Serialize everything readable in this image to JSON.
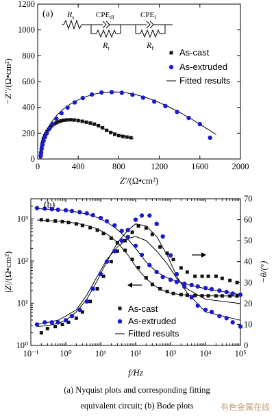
{
  "caption": {
    "line1": "(a) Nyquist plots and corresponding fitting",
    "line2": "equivalent circuit; (b) Bode plots"
  },
  "watermark": "有色金属在线",
  "colors": {
    "as_cast": "#111111",
    "as_extruded": "#1a1ad2",
    "fit": "#000000"
  },
  "chart_data": [
    {
      "type": "scatter",
      "panel_label": "(a)",
      "xlabel_main": "Z′",
      "xlabel_unit": "/(Ω•cm²)",
      "ylabel_main": "−Z″",
      "ylabel_unit": "/(Ω•cm²)",
      "xlim": [
        0,
        2000
      ],
      "ylim": [
        0,
        1200
      ],
      "xticks": [
        "0",
        "400",
        "800",
        "1200",
        "1600",
        "2000"
      ],
      "yticks": [
        "0",
        "200",
        "400",
        "600",
        "800",
        "1000",
        "1200"
      ],
      "circuit_labels": {
        "rs": "R",
        "rs_sub": "s",
        "cpe_dl": "CPE",
        "cpe_dl_sub": "dl",
        "cpe_f": "CPE",
        "cpe_f_sub": "f",
        "rt": "R",
        "rt_sub": "t",
        "rf": "R",
        "rf_sub": "f"
      },
      "legend": [
        "As-cast",
        "As-extruded",
        "Fitted results"
      ],
      "series": [
        {
          "name": "As-cast",
          "marker": "square",
          "x": [
            30,
            33,
            36,
            40,
            45,
            50,
            56,
            62,
            70,
            80,
            92,
            106,
            122,
            140,
            160,
            182,
            205,
            230,
            258,
            290,
            325,
            360,
            400,
            440,
            480,
            520,
            560,
            600,
            640,
            680,
            720,
            760,
            800,
            840,
            880,
            920
          ],
          "y": [
            20,
            45,
            70,
            95,
            118,
            135,
            152,
            165,
            180,
            195,
            212,
            228,
            244,
            258,
            270,
            280,
            288,
            295,
            300,
            303,
            304,
            302,
            298,
            292,
            285,
            278,
            270,
            258,
            242,
            222,
            205,
            192,
            182,
            175,
            170,
            165
          ]
        },
        {
          "name": "As-extruded",
          "marker": "circle",
          "x": [
            30,
            34,
            40,
            48,
            58,
            72,
            90,
            115,
            145,
            185,
            235,
            295,
            365,
            445,
            535,
            630,
            730,
            830,
            935,
            1040,
            1150,
            1260,
            1375,
            1490,
            1600,
            1700
          ],
          "y": [
            25,
            50,
            80,
            110,
            140,
            170,
            200,
            235,
            272,
            312,
            355,
            398,
            438,
            472,
            500,
            515,
            518,
            513,
            498,
            475,
            445,
            410,
            365,
            318,
            270,
            165
          ]
        },
        {
          "name": "Fitted results",
          "style": "line",
          "fit_for": "As-cast",
          "x": [
            26,
            30,
            36,
            45,
            60,
            80,
            110,
            150,
            200,
            260,
            320,
            380,
            430,
            480,
            540,
            600,
            650,
            700,
            750,
            800,
            850,
            900,
            950
          ],
          "y": [
            0,
            40,
            85,
            130,
            175,
            212,
            248,
            275,
            293,
            303,
            306,
            303,
            296,
            285,
            270,
            253,
            236,
            218,
            202,
            188,
            177,
            168,
            160
          ]
        },
        {
          "name": "Fitted results",
          "style": "line",
          "fit_for": "As-extruded",
          "x": [
            26,
            30,
            38,
            50,
            70,
            100,
            140,
            190,
            250,
            320,
            400,
            480,
            560,
            640,
            720,
            800,
            880,
            960,
            1040,
            1120,
            1200,
            1280,
            1360,
            1440,
            1520,
            1600,
            1680,
            1760
          ],
          "y": [
            0,
            45,
            90,
            140,
            190,
            240,
            290,
            340,
            385,
            425,
            458,
            484,
            503,
            515,
            520,
            519,
            512,
            500,
            483,
            462,
            437,
            409,
            378,
            344,
            308,
            270,
            230,
            190
          ]
        }
      ]
    },
    {
      "type": "scatter",
      "panel_label": "(b)",
      "xlabel": "f/Hz",
      "ylabel_left_main": "|Z|",
      "ylabel_left_unit": "/(Ω•cm²)",
      "ylabel_right": "−θ/(°)",
      "x_scale": "log",
      "y_left_scale": "log",
      "xlim": [
        0.1,
        100000
      ],
      "ylim_left": [
        1,
        3000
      ],
      "ylim_right": [
        0,
        70
      ],
      "xticks": [
        "10⁻¹",
        "10⁰",
        "10¹",
        "10²",
        "10³",
        "10⁴",
        "10⁵"
      ],
      "yticks_left": [
        "10⁰",
        "10¹",
        "10²",
        "10³"
      ],
      "yticks_right": [
        "0",
        "10",
        "20",
        "30",
        "40",
        "50",
        "60",
        "70"
      ],
      "legend": [
        "As-cast",
        "As-extruded",
        "Fitted results"
      ],
      "series": [
        {
          "name": "As-cast",
          "quantity": "|Z|",
          "axis": "left",
          "marker": "square",
          "x": [
            0.2,
            0.3,
            0.5,
            0.8,
            1.2,
            2,
            3,
            5,
            8,
            12,
            20,
            30,
            50,
            80,
            120,
            200,
            300,
            500,
            800,
            1200,
            2000,
            3000,
            5000,
            8000,
            12000,
            20000,
            30000,
            50000,
            80000
          ],
          "y": [
            950,
            920,
            890,
            860,
            820,
            760,
            700,
            620,
            540,
            450,
            350,
            270,
            180,
            110,
            70,
            40,
            28,
            22,
            19,
            17,
            16,
            15.5,
            15.2,
            15,
            15,
            14.9,
            14.9,
            14.8,
            14.8
          ]
        },
        {
          "name": "As-extruded",
          "quantity": "|Z|",
          "axis": "left",
          "marker": "circle",
          "x": [
            0.15,
            0.25,
            0.4,
            0.6,
            1,
            1.5,
            2.5,
            4,
            6,
            10,
            15,
            25,
            40,
            60,
            100,
            150,
            250,
            400,
            600,
            1000,
            1500,
            2500,
            4000,
            6000,
            10000,
            15000,
            25000,
            40000,
            60000,
            100000
          ],
          "y": [
            1800,
            1750,
            1700,
            1650,
            1600,
            1530,
            1450,
            1350,
            1220,
            1050,
            880,
            700,
            520,
            370,
            230,
            140,
            80,
            55,
            42,
            36,
            32,
            29,
            27,
            25,
            23,
            21.5,
            20,
            18.5,
            17,
            16
          ]
        },
        {
          "name": "As-cast",
          "quantity": "−θ",
          "axis": "right",
          "marker": "square",
          "x": [
            0.2,
            0.3,
            0.5,
            0.8,
            1.2,
            2,
            3,
            5,
            8,
            12,
            20,
            30,
            50,
            80,
            120,
            200,
            300,
            500,
            800,
            1200,
            2000,
            3000,
            5000,
            8000,
            12000,
            20000,
            30000,
            50000,
            80000
          ],
          "y": [
            6,
            8,
            9,
            10,
            11,
            13,
            16,
            21,
            27,
            33,
            40,
            45,
            50,
            54,
            57,
            56,
            53,
            47,
            44,
            41,
            37,
            35,
            33,
            33,
            33,
            33,
            32,
            31,
            30
          ]
        },
        {
          "name": "As-extruded",
          "quantity": "−θ",
          "axis": "right",
          "marker": "circle",
          "x": [
            0.15,
            0.25,
            0.4,
            0.6,
            1,
            1.5,
            2.5,
            4,
            6,
            10,
            15,
            25,
            40,
            60,
            100,
            150,
            250,
            400,
            600,
            1000,
            1500,
            2500,
            4000,
            6000,
            10000,
            15000,
            25000,
            40000,
            60000,
            100000
          ],
          "y": [
            10,
            11,
            11,
            11,
            12,
            14,
            17,
            21,
            27,
            34,
            40,
            45,
            50,
            55,
            60,
            62,
            62,
            58,
            52,
            43,
            34,
            28,
            23,
            19,
            17,
            16,
            14,
            13,
            11,
            9
          ]
        },
        {
          "name": "Fitted results",
          "quantity": "|Z|",
          "axis": "left",
          "style": "line",
          "fit_for": "As-cast",
          "x": [
            0.15,
            0.3,
            0.6,
            1,
            2,
            4,
            8,
            15,
            30,
            60,
            100,
            200,
            400,
            800,
            1500,
            3000,
            10000,
            100000
          ],
          "y": [
            940,
            910,
            880,
            850,
            790,
            700,
            580,
            440,
            280,
            140,
            75,
            38,
            24,
            18,
            16.5,
            15.5,
            15,
            14.8
          ]
        },
        {
          "name": "Fitted results",
          "quantity": "|Z|",
          "axis": "left",
          "style": "line",
          "fit_for": "As-extruded",
          "x": [
            0.15,
            0.3,
            0.6,
            1,
            2,
            4,
            8,
            15,
            30,
            60,
            100,
            200,
            400,
            800,
            1500,
            3000,
            10000,
            100000
          ],
          "y": [
            1750,
            1700,
            1640,
            1580,
            1470,
            1300,
            1080,
            840,
            560,
            330,
            200,
            95,
            55,
            40,
            33,
            28,
            22,
            16
          ]
        },
        {
          "name": "Fitted results",
          "quantity": "−θ",
          "axis": "right",
          "style": "line",
          "fit_for": "As-cast",
          "x": [
            0.15,
            0.3,
            0.6,
            1,
            2,
            4,
            8,
            15,
            30,
            60,
            100,
            200,
            400,
            800,
            1500,
            3000,
            10000,
            100000
          ],
          "y": [
            10,
            11,
            12,
            14,
            17,
            24,
            33,
            41,
            47,
            51,
            52,
            50,
            45,
            39,
            32,
            27,
            22,
            20
          ]
        },
        {
          "name": "Fitted results",
          "quantity": "−θ",
          "axis": "right",
          "style": "line",
          "fit_for": "As-extruded",
          "x": [
            0.15,
            0.3,
            0.6,
            1,
            2,
            4,
            8,
            15,
            30,
            60,
            100,
            200,
            400,
            800,
            1500,
            3000,
            10000,
            100000
          ],
          "y": [
            9,
            9.5,
            10.5,
            12,
            16,
            22,
            31,
            40,
            49,
            55,
            58,
            57,
            52,
            43,
            33,
            25,
            16,
            12
          ]
        }
      ]
    }
  ]
}
